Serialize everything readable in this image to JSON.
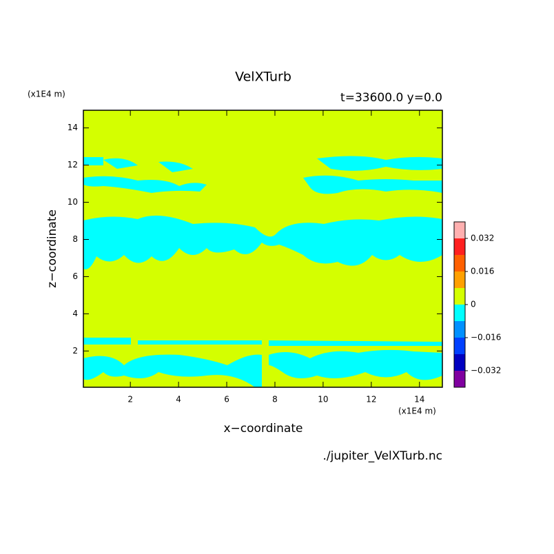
{
  "chart_data": {
    "type": "contour",
    "title": "VelXTurb",
    "subtitle": "t=33600.0 y=0.0",
    "x_label": "x−coordinate",
    "y_label": "z−coordinate",
    "x_unit": "(x1E4 m)",
    "y_unit": "(x1E4 m)",
    "footer": "./jupiter_VelXTurb.nc",
    "xlim": [
      0.05,
      14.95
    ],
    "xticks": [
      2,
      4,
      6,
      8,
      10,
      12,
      14
    ],
    "ylim": [
      0.05,
      14.95
    ],
    "yticks": [
      2,
      4,
      6,
      8,
      10,
      12,
      14
    ],
    "colorbar": {
      "clim": [
        -0.04,
        0.04
      ],
      "colors": [
        "#8000a0",
        "#0000c0",
        "#0040ff",
        "#0090ff",
        "#00ffff",
        "#d4ff00",
        "#ffa000",
        "#ff6000",
        "#ff2020",
        "#ffb0b0"
      ],
      "ticks": [
        {
          "value": -0.032,
          "label": "−0.032"
        },
        {
          "value": -0.016,
          "label": "−0.016"
        },
        0,
        0.016,
        0.032
      ]
    }
  }
}
